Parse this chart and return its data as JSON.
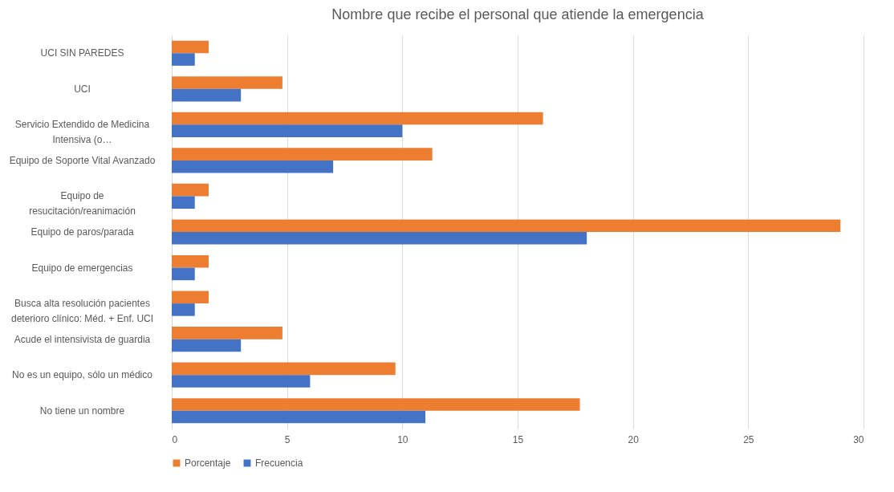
{
  "chart_data": {
    "type": "bar",
    "orientation": "horizontal",
    "title": "Nombre que recibe el personal que atiende la emergencia",
    "categories": [
      "UCI SIN PAREDES",
      "UCI",
      "Servicio Extendido de Medicina Intensiva (o…",
      "Equipo de Soporte Vital Avanzado",
      "Equipo de resucitación/reanimación",
      "Equipo de paros/parada",
      "Equipo de emergencias",
      "Busca alta resolución pacientes deterioro clínico: Méd. + Enf. UCI",
      "Acude el intensivista de guardia",
      "No es un equipo, sólo un médico",
      "No tiene un nombre"
    ],
    "series": [
      {
        "name": "Porcentaje",
        "color": "#ed7d31",
        "values": [
          1.6,
          4.8,
          16.1,
          11.3,
          1.6,
          29.0,
          1.6,
          1.6,
          4.8,
          9.7,
          17.7
        ]
      },
      {
        "name": "Frecuencia",
        "color": "#4472c4",
        "values": [
          1,
          3,
          10,
          7,
          1,
          18,
          1,
          1,
          3,
          6,
          11
        ]
      }
    ],
    "xlim": [
      0,
      30
    ],
    "xticks": [
      0,
      5,
      10,
      15,
      20,
      25,
      30
    ],
    "grid": "x",
    "legend": "bottom"
  }
}
